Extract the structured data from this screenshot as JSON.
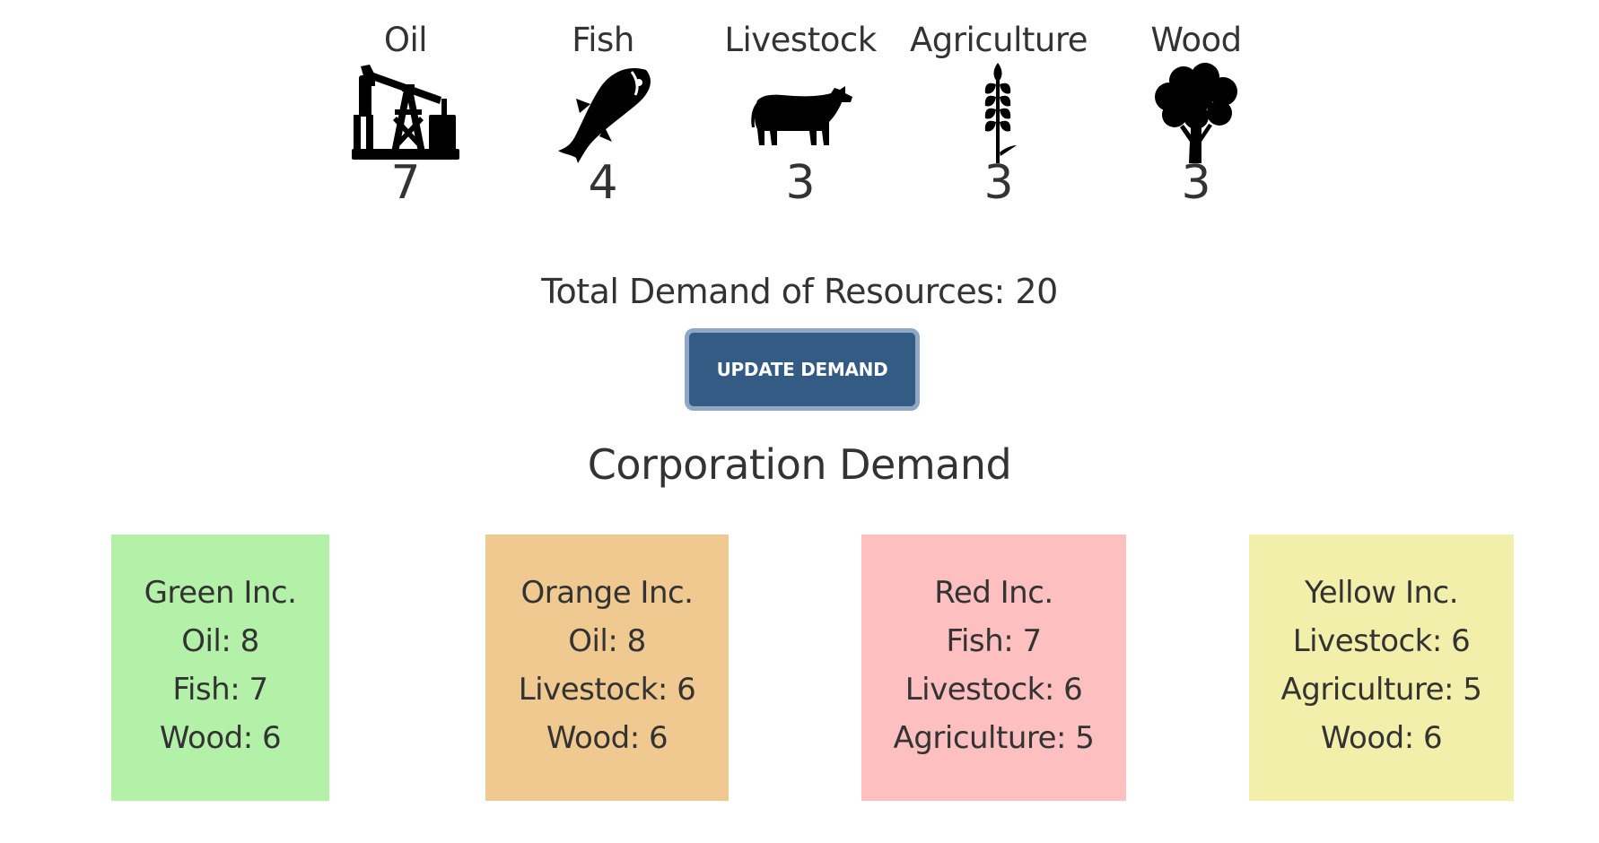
{
  "resources": [
    {
      "label": "Oil",
      "value": "7",
      "icon": "oil-pumpjack-icon"
    },
    {
      "label": "Fish",
      "value": "4",
      "icon": "fish-icon"
    },
    {
      "label": "Livestock",
      "value": "3",
      "icon": "cow-icon"
    },
    {
      "label": "Agriculture",
      "value": "3",
      "icon": "wheat-icon"
    },
    {
      "label": "Wood",
      "value": "3",
      "icon": "tree-icon"
    }
  ],
  "total": {
    "text": "Total Demand of Resources: 20"
  },
  "update_button": {
    "label": "UPDATE DEMAND"
  },
  "corporation_section": {
    "title": "Corporation Demand"
  },
  "corporations": [
    {
      "name": "Green Inc.",
      "color": "#b3f1a9",
      "lines": [
        "Oil: 8",
        "Fish: 7",
        "Wood: 6"
      ]
    },
    {
      "name": "Orange Inc.",
      "color": "#efc98f",
      "lines": [
        "Oil: 8",
        "Livestock: 6",
        "Wood: 6"
      ]
    },
    {
      "name": "Red Inc.",
      "color": "#fdbfbf",
      "lines": [
        "Fish: 7",
        "Livestock: 6",
        "Agriculture: 5"
      ]
    },
    {
      "name": "Yellow Inc.",
      "color": "#f1efa9",
      "lines": [
        "Livestock: 6",
        "Agriculture: 5",
        "Wood: 6"
      ]
    }
  ],
  "colors": {
    "text": "#333333",
    "button_bg": "#335b84",
    "button_border": "#8fa8c6"
  }
}
